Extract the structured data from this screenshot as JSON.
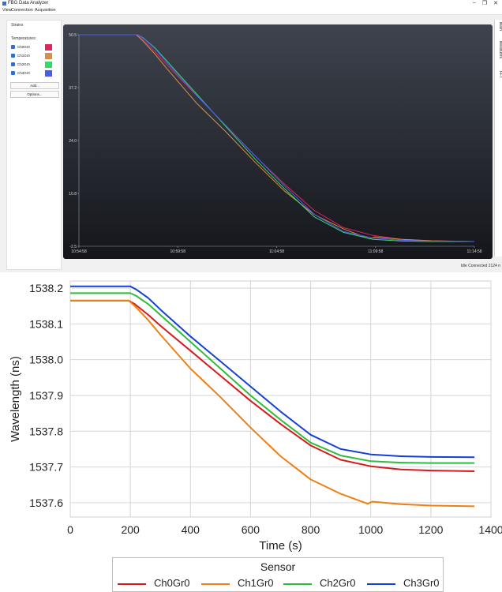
{
  "window": {
    "title": "FBG Data Analyzer",
    "minimize": "–",
    "maximize": "❐",
    "close": "✕"
  },
  "menu": [
    "View",
    "Connection",
    "Acquisition"
  ],
  "left_panel": {
    "strains_label": "Strains",
    "temps_label": "Temperatures:",
    "channels": [
      {
        "label": "Ch0Gr0",
        "color": "#e0245e"
      },
      {
        "label": "Ch1Gr0",
        "color": "#d98e4c"
      },
      {
        "label": "Ch2Gr0",
        "color": "#38d96b"
      },
      {
        "label": "Ch3Gr0",
        "color": "#4a5cf0"
      }
    ],
    "add_label": "Add...",
    "options_label": "Options..."
  },
  "right_tabs": [
    "Main",
    "Measures",
    "FFT"
  ],
  "status": "Idle  Connected  2124 n",
  "live_plot": {
    "y_ticks": [
      "50.5",
      "37.2",
      "24.0",
      "10.8",
      "-2.5"
    ],
    "x_ticks": [
      "10:54:58",
      "10:59:58",
      "11:04:58",
      "11:09:58",
      "11:14:58"
    ]
  },
  "chart_data": {
    "type": "line",
    "xlabel": "Time (s)",
    "ylabel": "Wavelength (ns)",
    "xlim": [
      0,
      1400
    ],
    "ylim": [
      1537.56,
      1538.22
    ],
    "x_ticks": [
      0,
      200,
      400,
      600,
      800,
      1000,
      1200,
      1400
    ],
    "y_ticks": [
      1537.6,
      1537.7,
      1537.8,
      1537.9,
      1538.0,
      1538.1,
      1538.2
    ],
    "y_tick_labels": [
      "1537.6",
      "1537.7",
      "1537.8",
      "1537.9",
      "1538.0",
      "1538.1",
      "1538.2"
    ],
    "grid": true,
    "legend_title": "Sensor",
    "legend_position": "bottom",
    "series": [
      {
        "name": "Ch0Gr0",
        "color": "#d7191c",
        "x": [
          0,
          195,
          215,
          260,
          300,
          400,
          500,
          600,
          700,
          800,
          900,
          1000,
          1100,
          1200,
          1345
        ],
        "y": [
          1538.165,
          1538.165,
          1538.155,
          1538.125,
          1538.095,
          1538.025,
          1537.955,
          1537.885,
          1537.82,
          1537.76,
          1537.72,
          1537.702,
          1537.693,
          1537.69,
          1537.688
        ]
      },
      {
        "name": "Ch1Gr0",
        "color": "#f07f12",
        "x": [
          0,
          195,
          215,
          260,
          300,
          400,
          500,
          600,
          700,
          800,
          900,
          990,
          1005,
          1100,
          1200,
          1345
        ],
        "y": [
          1538.165,
          1538.165,
          1538.15,
          1538.11,
          1538.07,
          1537.975,
          1537.895,
          1537.81,
          1537.73,
          1537.665,
          1537.625,
          1537.597,
          1537.603,
          1537.596,
          1537.592,
          1537.59
        ]
      },
      {
        "name": "Ch2Gr0",
        "color": "#2ebd3a",
        "x": [
          0,
          200,
          220,
          260,
          300,
          400,
          500,
          600,
          700,
          800,
          900,
          1000,
          1100,
          1200,
          1345
        ],
        "y": [
          1538.186,
          1538.186,
          1538.178,
          1538.155,
          1538.125,
          1538.05,
          1537.975,
          1537.9,
          1537.832,
          1537.768,
          1537.732,
          1537.716,
          1537.712,
          1537.711,
          1537.711
        ]
      },
      {
        "name": "Ch3Gr0",
        "color": "#1540d8",
        "x": [
          0,
          200,
          222,
          260,
          300,
          400,
          500,
          600,
          700,
          800,
          900,
          1000,
          1100,
          1200,
          1345
        ],
        "y": [
          1538.205,
          1538.205,
          1538.195,
          1538.172,
          1538.14,
          1538.065,
          1537.995,
          1537.925,
          1537.855,
          1537.79,
          1537.75,
          1537.735,
          1537.73,
          1537.728,
          1537.727
        ]
      }
    ]
  }
}
